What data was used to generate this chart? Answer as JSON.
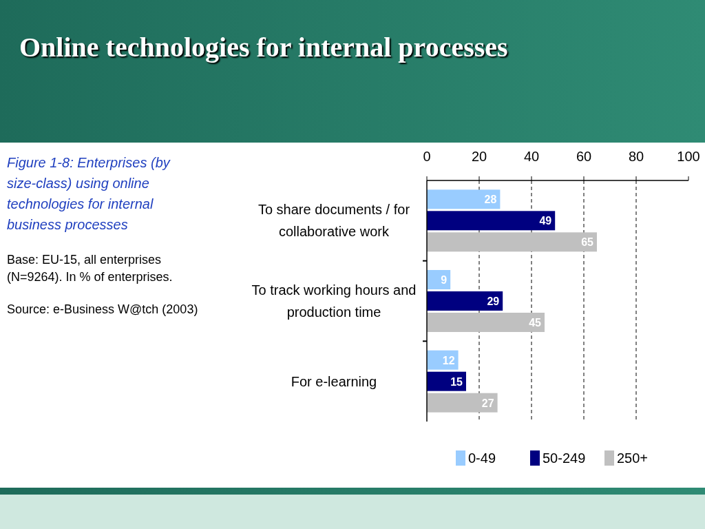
{
  "chart_data": {
    "type": "bar",
    "orientation": "horizontal",
    "title": "Online technologies for internal processes",
    "subtitle": "Figure 1-8: Enterprises (by size-class) using online technologies for internal business processes",
    "annotations": [
      "Base: EU-15, all enterprises (N=9264). In % of enterprises.",
      "Source: e-Business W@tch (2003)"
    ],
    "categories": [
      "To share documents / for collaborative work",
      "To track working hours and production time",
      "For e-learning"
    ],
    "series": [
      {
        "name": "0-49",
        "color": "#99ccff",
        "values": [
          28,
          9,
          12
        ]
      },
      {
        "name": "50-249",
        "color": "#000080",
        "values": [
          49,
          29,
          15
        ]
      },
      {
        "name": "250+",
        "color": "#c0c0c0",
        "values": [
          65,
          45,
          27
        ]
      }
    ],
    "xlim": [
      0,
      100
    ],
    "xticks": [
      0,
      20,
      40,
      60,
      80,
      100
    ],
    "grid": "x",
    "legend": "bottom",
    "data_labels": true
  }
}
